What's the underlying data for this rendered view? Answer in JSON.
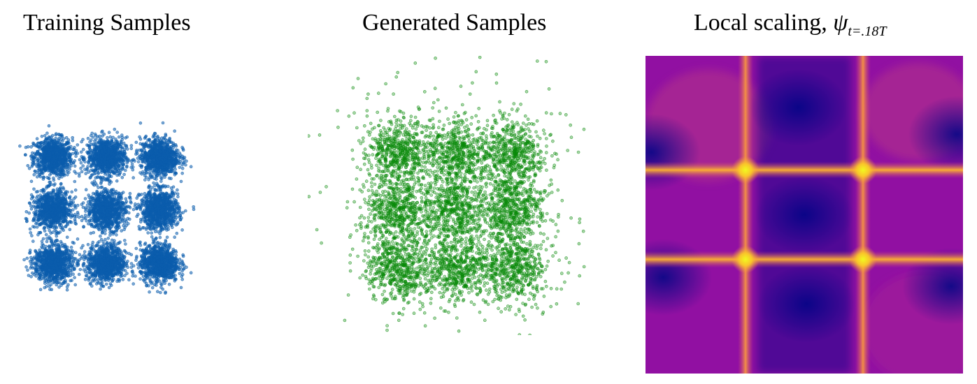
{
  "titles": {
    "training": "Training Samples",
    "generated": "Generated Samples",
    "scaling_text": "Local scaling, ",
    "scaling_symbol": "ψ",
    "scaling_subscript": "t=.18T"
  },
  "colors": {
    "training_points": "#0b5cad",
    "generated_points": "#0a8a0a",
    "heatmap_dark": "#0d0887",
    "heatmap_mid": "#9c179e",
    "heatmap_bright": "#f0f921"
  },
  "chart_data": [
    {
      "type": "scatter",
      "title": "Training Samples",
      "series": [
        {
          "centers": [
            [
              -1,
              1
            ],
            [
              0,
              1
            ],
            [
              1,
              1
            ],
            [
              -1,
              0
            ],
            [
              0,
              0
            ],
            [
              1,
              0
            ],
            [
              -1,
              -1
            ],
            [
              0,
              -1
            ],
            [
              1,
              -1
            ]
          ],
          "spread": 0.18,
          "points_per_cluster": 900
        }
      ],
      "grid": false,
      "axes": false
    },
    {
      "type": "scatter",
      "title": "Generated Samples",
      "series": [
        {
          "centers": [
            [
              -1,
              1
            ],
            [
              0,
              1
            ],
            [
              1,
              1
            ],
            [
              -1,
              0
            ],
            [
              0,
              0
            ],
            [
              1,
              0
            ],
            [
              -1,
              -1
            ],
            [
              0,
              -1
            ],
            [
              1,
              -1
            ]
          ],
          "spread": 0.28,
          "points_per_cluster": 600
        }
      ],
      "grid": false,
      "axes": false
    },
    {
      "type": "heatmap",
      "title": "Local scaling, ψ t=.18T",
      "colormap": "plasma",
      "bright_lines_x": [
        -0.5,
        0.5
      ],
      "bright_lines_y": [
        -0.5,
        0.5
      ],
      "grid": false,
      "axes": false
    }
  ]
}
